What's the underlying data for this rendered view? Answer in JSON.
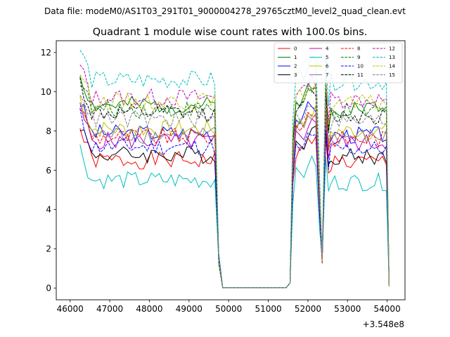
{
  "chart_data": {
    "type": "line",
    "suptitle": "Data file: modeM0/AS1T03_291T01_9000004278_29765cztM0_level2_quad_clean.evt",
    "title": "Quadrant 1 module wise count rates with 100.0s bins.",
    "xlabel": "",
    "ylabel": "",
    "x_offset_label": "+3.548e8",
    "xlim": [
      45650,
      54450
    ],
    "ylim": [
      -0.6,
      12.6
    ],
    "xticks": [
      46000,
      47000,
      48000,
      49000,
      50000,
      51000,
      52000,
      53000,
      54000
    ],
    "xtick_labels": [
      "46000",
      "47000",
      "48000",
      "49000",
      "50000",
      "51000",
      "52000",
      "53000",
      "54000"
    ],
    "yticks": [
      0,
      2,
      4,
      6,
      8,
      10,
      12
    ],
    "ytick_labels": [
      "0",
      "2",
      "4",
      "6",
      "8",
      "10",
      "12"
    ],
    "grid": false,
    "legend_position": "top-right",
    "legend_columns": 4,
    "segments": [
      {
        "start": 46250,
        "end": 49650,
        "step": 100
      },
      {
        "start": 52580,
        "end": 54020,
        "step": 100
      }
    ],
    "series": [
      {
        "name": "0",
        "color": "#ff0000",
        "dash": "solid",
        "level": 6.5,
        "high": 6.9,
        "seed": 1
      },
      {
        "name": "1",
        "color": "#008000",
        "dash": "solid",
        "level": 9.3,
        "high": 9.6,
        "seed": 2
      },
      {
        "name": "2",
        "color": "#0000ff",
        "dash": "solid",
        "level": 7.9,
        "high": 8.6,
        "seed": 3
      },
      {
        "name": "3",
        "color": "#000000",
        "dash": "solid",
        "level": 6.8,
        "high": 7.4,
        "seed": 4
      },
      {
        "name": "4",
        "color": "#bf00bf",
        "dash": "solid",
        "level": 7.5,
        "high": 7.8,
        "seed": 5
      },
      {
        "name": "5",
        "color": "#00bfbf",
        "dash": "solid",
        "level": 5.5,
        "high": 5.8,
        "seed": 6
      },
      {
        "name": "6",
        "color": "#bfbf00",
        "dash": "solid",
        "level": 8.1,
        "high": 8.4,
        "seed": 7
      },
      {
        "name": "7",
        "color": "#808080",
        "dash": "solid",
        "level": 7.8,
        "high": 8.2,
        "seed": 8
      },
      {
        "name": "8",
        "color": "#ff0000",
        "dash": "dashed",
        "level": 7.7,
        "high": 8.3,
        "seed": 9
      },
      {
        "name": "9",
        "color": "#008000",
        "dash": "dashed",
        "level": 9.1,
        "high": 9.4,
        "seed": 10
      },
      {
        "name": "10",
        "color": "#0000ff",
        "dash": "dashed",
        "level": 7.2,
        "high": 7.1,
        "seed": 11
      },
      {
        "name": "11",
        "color": "#000000",
        "dash": "dashed",
        "level": 8.9,
        "high": 9.3,
        "seed": 12
      },
      {
        "name": "12",
        "color": "#bf00bf",
        "dash": "dashed",
        "level": 9.7,
        "high": 10.0,
        "seed": 13
      },
      {
        "name": "13",
        "color": "#00bfbf",
        "dash": "dashed",
        "level": 10.6,
        "high": 10.9,
        "seed": 14
      },
      {
        "name": "14",
        "color": "#bfbf00",
        "dash": "dashed",
        "level": 9.5,
        "high": 9.8,
        "seed": 15
      },
      {
        "name": "15",
        "color": "#808080",
        "dash": "dashed",
        "level": 8.6,
        "high": 8.8,
        "seed": 16
      }
    ]
  }
}
